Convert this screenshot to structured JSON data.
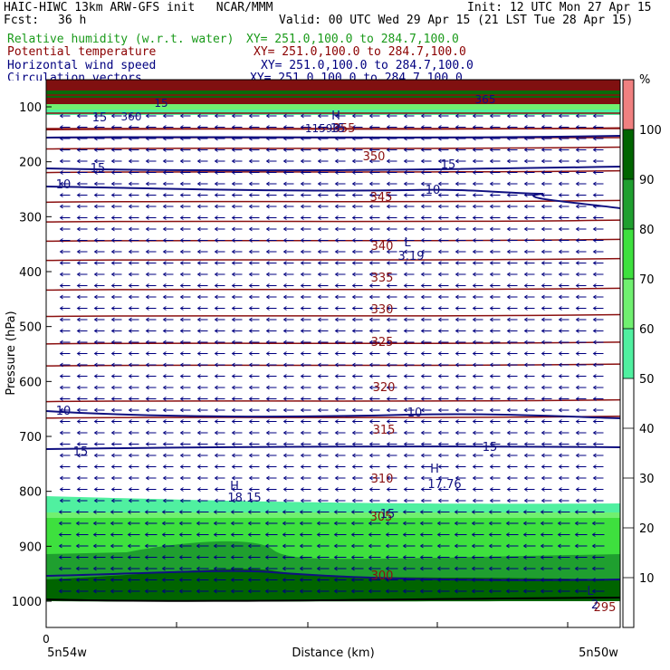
{
  "header": {
    "title_left": "HAIC-HIWC 13km ARW-GFS init   NCAR/MMM",
    "init": "Init: 12 UTC Mon 27 Apr 15",
    "fcst_label": "Fcst:",
    "fcst_value": "36 h",
    "valid": "Valid: 00 UTC Wed 29 Apr 15 (21 LST Tue 28 Apr 15)"
  },
  "fields": [
    {
      "name": "Relative humidity (w.r.t. water)",
      "xy": "XY= 251.0,100.0 to 284.7,100.0",
      "color": "#1a9a1a"
    },
    {
      "name": "Potential temperature",
      "xy": "XY= 251.0,100.0 to 284.7,100.0",
      "color": "#8b0000"
    },
    {
      "name": "Horizontal wind speed",
      "xy": "XY= 251.0,100.0 to 284.7,100.0",
      "color": "#000080"
    },
    {
      "name": "Circulation vectors",
      "xy": "XY= 251.0,100.0 to 284.7,100.0",
      "color": "#000080"
    }
  ],
  "chart_data": {
    "type": "vertical-cross-section",
    "ylabel": "Pressure (hPa)",
    "xlabel": "Distance (km)",
    "x_tick_zero": "0",
    "x_left_label": "5n54w",
    "x_right_label": "5n50w",
    "y_ticks": [
      100,
      200,
      300,
      400,
      500,
      600,
      700,
      800,
      900,
      1000
    ],
    "ylim": [
      1000,
      50
    ],
    "colorbar": {
      "unit": "%",
      "ticks": [
        10,
        20,
        30,
        40,
        50,
        60,
        70,
        80,
        90,
        100
      ],
      "bands": [
        {
          "from": 100,
          "to": 110,
          "color": "#f08080"
        },
        {
          "from": 90,
          "to": 100,
          "color": "#006400"
        },
        {
          "from": 80,
          "to": 90,
          "color": "#1f9f2f"
        },
        {
          "from": 70,
          "to": 80,
          "color": "#3ee03e"
        },
        {
          "from": 60,
          "to": 70,
          "color": "#70f070"
        },
        {
          "from": 50,
          "to": 60,
          "color": "#50f0a0"
        }
      ]
    },
    "theta_labels": [
      "355",
      "350",
      "345",
      "340",
      "335",
      "330",
      "325",
      "320",
      "315",
      "310",
      "305",
      "300",
      "295"
    ],
    "theta_levels_hpa": [
      140,
      175,
      218,
      272,
      308,
      343,
      378,
      432,
      480,
      530,
      570,
      635,
      665
    ],
    "wind_labels": [
      "15",
      "15",
      "10",
      "10",
      "10",
      "10",
      "15",
      "15",
      "15",
      "15"
    ],
    "extrema": [
      {
        "mark": "H",
        "value": "15"
      },
      {
        "mark": "L",
        "value": "3.19"
      },
      {
        "mark": "H",
        "value": "18.15"
      },
      {
        "mark": "H",
        "value": "17.76"
      },
      {
        "mark": "L",
        "value": "2"
      }
    ],
    "extra_labels": [
      "360",
      "15",
      "11599",
      "365"
    ]
  }
}
